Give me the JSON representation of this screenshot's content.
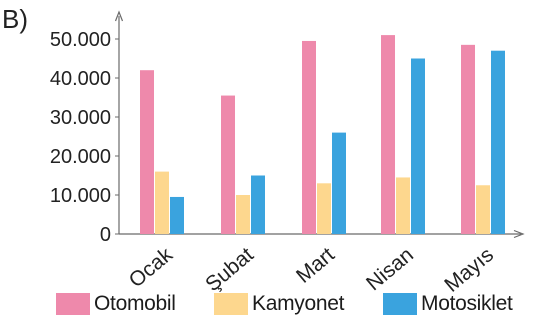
{
  "panel_label": "B)",
  "chart_data": {
    "type": "bar",
    "categories": [
      "Ocak",
      "Şubat",
      "Mart",
      "Nisan",
      "Mayıs"
    ],
    "series": [
      {
        "name": "Otomobil",
        "color": "#ee89ab",
        "values": [
          42000,
          35500,
          49500,
          51000,
          48500
        ]
      },
      {
        "name": "Kamyonet",
        "color": "#fdd78e",
        "values": [
          16000,
          10000,
          13000,
          14500,
          12500
        ]
      },
      {
        "name": "Motosiklet",
        "color": "#3aa3de",
        "values": [
          9500,
          15000,
          26000,
          45000,
          47000
        ]
      }
    ],
    "ylim": [
      0,
      55000
    ],
    "yticks": [
      0,
      10000,
      20000,
      30000,
      40000,
      50000
    ],
    "ytick_labels": [
      "0",
      "10.000",
      "20.000",
      "30.000",
      "40.000",
      "50.000"
    ],
    "xlabel": "",
    "ylabel": "",
    "grid": false,
    "legend_position": "bottom"
  }
}
